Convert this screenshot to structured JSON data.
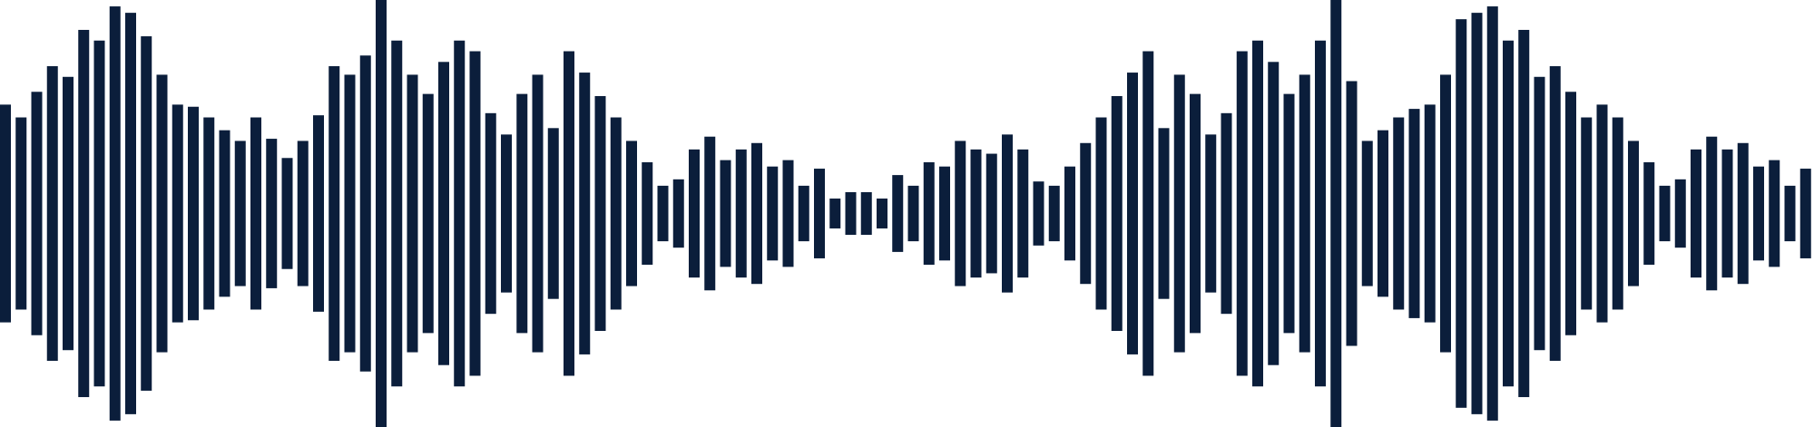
{
  "waveform": {
    "bar_color": "#0b1e3b",
    "background": "#ffffff",
    "amplitudes": [
      0.51,
      0.45,
      0.57,
      0.69,
      0.64,
      0.86,
      0.81,
      0.97,
      0.94,
      0.83,
      0.65,
      0.51,
      0.5,
      0.45,
      0.39,
      0.34,
      0.45,
      0.35,
      0.26,
      0.34,
      0.46,
      0.69,
      0.65,
      0.74,
      1.0,
      0.81,
      0.65,
      0.56,
      0.71,
      0.81,
      0.76,
      0.47,
      0.37,
      0.56,
      0.65,
      0.4,
      0.76,
      0.66,
      0.55,
      0.45,
      0.34,
      0.24,
      0.13,
      0.16,
      0.3,
      0.36,
      0.25,
      0.3,
      0.33,
      0.22,
      0.25,
      0.13,
      0.21,
      0.07,
      0.1,
      0.1,
      0.07,
      0.18,
      0.13,
      0.24,
      0.22,
      0.34,
      0.3,
      0.28,
      0.37,
      0.3,
      0.15,
      0.13,
      0.22,
      0.33,
      0.45,
      0.55,
      0.66,
      0.76,
      0.4,
      0.65,
      0.56,
      0.37,
      0.47,
      0.76,
      0.81,
      0.71,
      0.56,
      0.65,
      0.81,
      1.0,
      0.62,
      0.34,
      0.39,
      0.45,
      0.49,
      0.51,
      0.65,
      0.91,
      0.94,
      0.97,
      0.81,
      0.86,
      0.64,
      0.69,
      0.57,
      0.45,
      0.51,
      0.45,
      0.34,
      0.24,
      0.13,
      0.16,
      0.3,
      0.36,
      0.3,
      0.33,
      0.22,
      0.25,
      0.13,
      0.21
    ]
  }
}
